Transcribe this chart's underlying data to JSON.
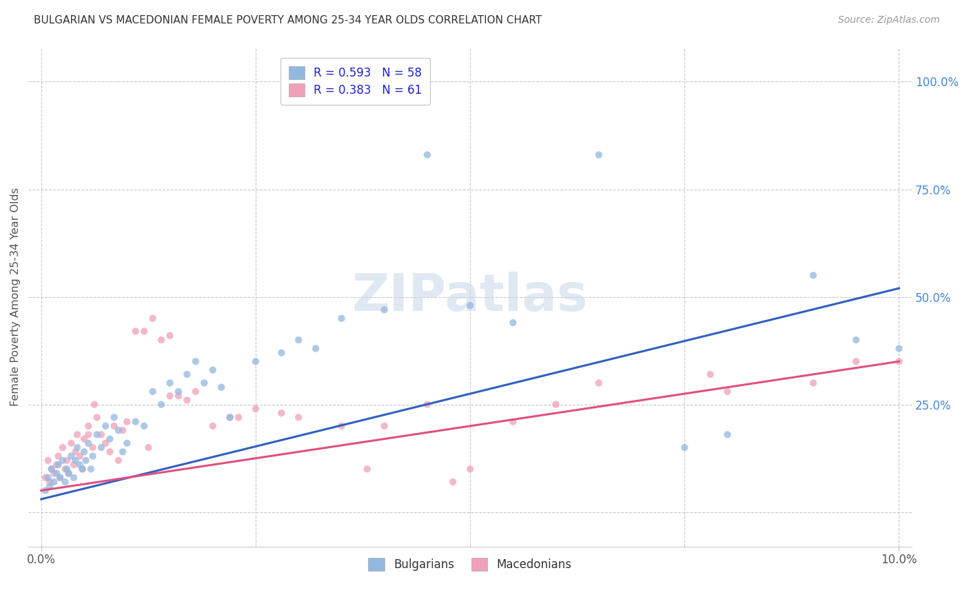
{
  "title": "BULGARIAN VS MACEDONIAN FEMALE POVERTY AMONG 25-34 YEAR OLDS CORRELATION CHART",
  "source": "Source: ZipAtlas.com",
  "ylabel": "Female Poverty Among 25-34 Year Olds",
  "watermark": "ZIPatlas",
  "xlim": [
    0.0,
    10.0
  ],
  "ylim": [
    -8.0,
    108.0
  ],
  "blue_color": "#92b8e0",
  "pink_color": "#f0a0b8",
  "blue_line_color": "#3060c0",
  "pink_line_color": "#e05080",
  "legend_text_color": "#2020cc",
  "blue_scatter": {
    "x": [
      0.05,
      0.08,
      0.1,
      0.12,
      0.15,
      0.18,
      0.2,
      0.22,
      0.25,
      0.28,
      0.3,
      0.32,
      0.35,
      0.38,
      0.4,
      0.42,
      0.45,
      0.48,
      0.5,
      0.52,
      0.55,
      0.58,
      0.6,
      0.65,
      0.7,
      0.75,
      0.8,
      0.85,
      0.9,
      0.95,
      1.0,
      1.1,
      1.2,
      1.3,
      1.4,
      1.5,
      1.6,
      1.7,
      1.8,
      1.9,
      2.0,
      2.2,
      2.5,
      2.8,
      3.0,
      3.5,
      4.0,
      4.5,
      5.0,
      5.5,
      6.5,
      7.5,
      8.0,
      9.0,
      9.5,
      10.0,
      3.2,
      2.1
    ],
    "y": [
      5,
      8,
      6,
      10,
      7,
      9,
      11,
      8,
      12,
      7,
      10,
      9,
      13,
      8,
      12,
      15,
      11,
      10,
      14,
      12,
      16,
      10,
      13,
      18,
      15,
      20,
      17,
      22,
      19,
      14,
      16,
      21,
      20,
      28,
      25,
      30,
      28,
      32,
      35,
      30,
      33,
      22,
      35,
      37,
      40,
      45,
      47,
      83,
      48,
      44,
      83,
      15,
      18,
      55,
      40,
      38,
      38,
      29
    ]
  },
  "pink_scatter": {
    "x": [
      0.05,
      0.08,
      0.1,
      0.12,
      0.15,
      0.18,
      0.2,
      0.22,
      0.25,
      0.28,
      0.3,
      0.32,
      0.35,
      0.38,
      0.4,
      0.42,
      0.45,
      0.48,
      0.5,
      0.55,
      0.6,
      0.65,
      0.7,
      0.75,
      0.8,
      0.85,
      0.9,
      0.95,
      1.0,
      1.1,
      1.2,
      1.3,
      1.4,
      1.5,
      1.6,
      1.7,
      1.8,
      2.0,
      2.2,
      2.5,
      2.8,
      3.0,
      3.5,
      4.0,
      4.5,
      5.0,
      5.5,
      6.0,
      8.0,
      9.0,
      9.5,
      10.0,
      0.62,
      1.5,
      2.3,
      3.8,
      4.8,
      6.5,
      7.8,
      0.55,
      1.25
    ],
    "y": [
      8,
      12,
      7,
      10,
      9,
      11,
      13,
      8,
      15,
      10,
      12,
      9,
      16,
      11,
      14,
      18,
      13,
      10,
      17,
      20,
      15,
      22,
      18,
      16,
      14,
      20,
      12,
      19,
      21,
      42,
      42,
      45,
      40,
      41,
      27,
      26,
      28,
      20,
      22,
      24,
      23,
      22,
      20,
      20,
      25,
      10,
      21,
      25,
      28,
      30,
      35,
      35,
      25,
      27,
      22,
      10,
      7,
      30,
      32,
      18,
      15
    ]
  },
  "blue_line": {
    "x0": 0.0,
    "y0": 3.0,
    "x1": 10.0,
    "y1": 52.0
  },
  "pink_line": {
    "x0": 0.0,
    "y0": 5.0,
    "x1": 10.0,
    "y1": 35.0
  }
}
